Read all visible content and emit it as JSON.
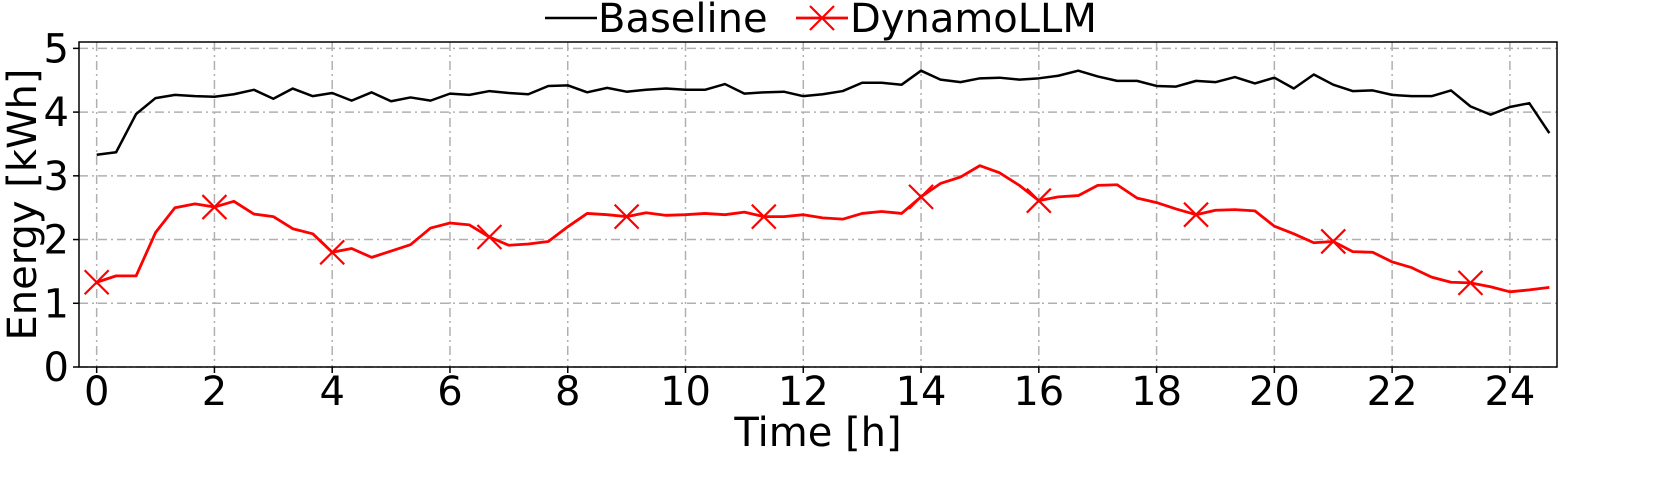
{
  "chart_data": {
    "type": "line",
    "xlabel": "Time [h]",
    "ylabel": "Energy [kWh]",
    "xlim": [
      -0.3,
      24.8
    ],
    "ylim": [
      0,
      5.1
    ],
    "xticks": [
      "0",
      "2",
      "4",
      "6",
      "8",
      "10",
      "12",
      "14",
      "16",
      "18",
      "20",
      "22",
      "24"
    ],
    "yticks": [
      "0",
      "1",
      "2",
      "3",
      "4",
      "5"
    ],
    "grid": true,
    "legend_position": "top-center, outside plot",
    "series": [
      {
        "name": "Baseline",
        "color": "#000000",
        "marker": "none",
        "x": [
          0,
          0.33,
          0.67,
          1.0,
          1.33,
          1.67,
          2.0,
          2.33,
          2.67,
          3.0,
          3.33,
          3.67,
          4.0,
          4.33,
          4.67,
          5.0,
          5.33,
          5.67,
          6.0,
          6.33,
          6.67,
          7.0,
          7.33,
          7.67,
          8.0,
          8.33,
          8.67,
          9.0,
          9.33,
          9.67,
          10.0,
          10.33,
          10.67,
          11.0,
          11.33,
          11.67,
          12.0,
          12.33,
          12.67,
          13.0,
          13.33,
          13.67,
          14.0,
          14.33,
          14.67,
          15.0,
          15.33,
          15.67,
          16.0,
          16.33,
          16.67,
          17.0,
          17.33,
          17.67,
          18.0,
          18.33,
          18.67,
          19.0,
          19.33,
          19.67,
          20.0,
          20.33,
          20.67,
          21.0,
          21.33,
          21.67,
          22.0,
          22.33,
          22.67,
          23.0,
          23.33,
          23.67,
          24.0,
          24.33,
          24.67
        ],
        "y": [
          3.33,
          3.37,
          3.97,
          4.22,
          4.27,
          4.25,
          4.24,
          4.28,
          4.35,
          4.21,
          4.37,
          4.25,
          4.3,
          4.18,
          4.31,
          4.17,
          4.23,
          4.18,
          4.29,
          4.27,
          4.33,
          4.3,
          4.28,
          4.41,
          4.42,
          4.31,
          4.38,
          4.32,
          4.35,
          4.37,
          4.35,
          4.35,
          4.44,
          4.29,
          4.31,
          4.32,
          4.25,
          4.28,
          4.33,
          4.46,
          4.46,
          4.43,
          4.65,
          4.51,
          4.47,
          4.53,
          4.54,
          4.51,
          4.53,
          4.57,
          4.65,
          4.56,
          4.49,
          4.49,
          4.41,
          4.4,
          4.49,
          4.47,
          4.55,
          4.45,
          4.54,
          4.37,
          4.59,
          4.43,
          4.33,
          4.34,
          4.27,
          4.25,
          4.25,
          4.34,
          4.09,
          3.96,
          4.08,
          4.14,
          3.67
        ]
      },
      {
        "name": "DynamoLLM",
        "color": "#ff0000",
        "marker": "x",
        "x": [
          0,
          0.33,
          0.67,
          1.0,
          1.33,
          1.67,
          2.0,
          2.33,
          2.67,
          3.0,
          3.33,
          3.67,
          4.0,
          4.33,
          4.67,
          5.0,
          5.33,
          5.67,
          6.0,
          6.33,
          6.67,
          7.0,
          7.33,
          7.67,
          8.0,
          8.33,
          8.67,
          9.0,
          9.33,
          9.67,
          10.0,
          10.33,
          10.67,
          11.0,
          11.33,
          11.67,
          12.0,
          12.33,
          12.67,
          13.0,
          13.33,
          13.67,
          14.0,
          14.33,
          14.67,
          15.0,
          15.33,
          15.67,
          16.0,
          16.33,
          16.67,
          17.0,
          17.33,
          17.67,
          18.0,
          18.33,
          18.67,
          19.0,
          19.33,
          19.67,
          20.0,
          20.33,
          20.67,
          21.0,
          21.33,
          21.67,
          22.0,
          22.33,
          22.67,
          23.0,
          23.33,
          23.67,
          24.0,
          24.33,
          24.67
        ],
        "y": [
          1.33,
          1.43,
          1.43,
          2.11,
          2.5,
          2.56,
          2.51,
          2.6,
          2.4,
          2.36,
          2.17,
          2.09,
          1.8,
          1.86,
          1.72,
          1.82,
          1.92,
          2.18,
          2.26,
          2.23,
          2.04,
          1.91,
          1.93,
          1.97,
          2.2,
          2.41,
          2.39,
          2.36,
          2.42,
          2.38,
          2.39,
          2.41,
          2.39,
          2.43,
          2.36,
          2.36,
          2.39,
          2.34,
          2.32,
          2.41,
          2.44,
          2.41,
          2.67,
          2.88,
          2.98,
          3.16,
          3.05,
          2.85,
          2.61,
          2.67,
          2.69,
          2.85,
          2.86,
          2.65,
          2.58,
          2.48,
          2.39,
          2.46,
          2.47,
          2.45,
          2.21,
          2.09,
          1.95,
          1.97,
          1.81,
          1.8,
          1.65,
          1.56,
          1.41,
          1.33,
          1.32,
          1.26,
          1.18,
          1.21,
          1.25
        ],
        "marker_indices": [
          0,
          6,
          12,
          20,
          27,
          34,
          42,
          48,
          56,
          63,
          70
        ]
      }
    ]
  }
}
